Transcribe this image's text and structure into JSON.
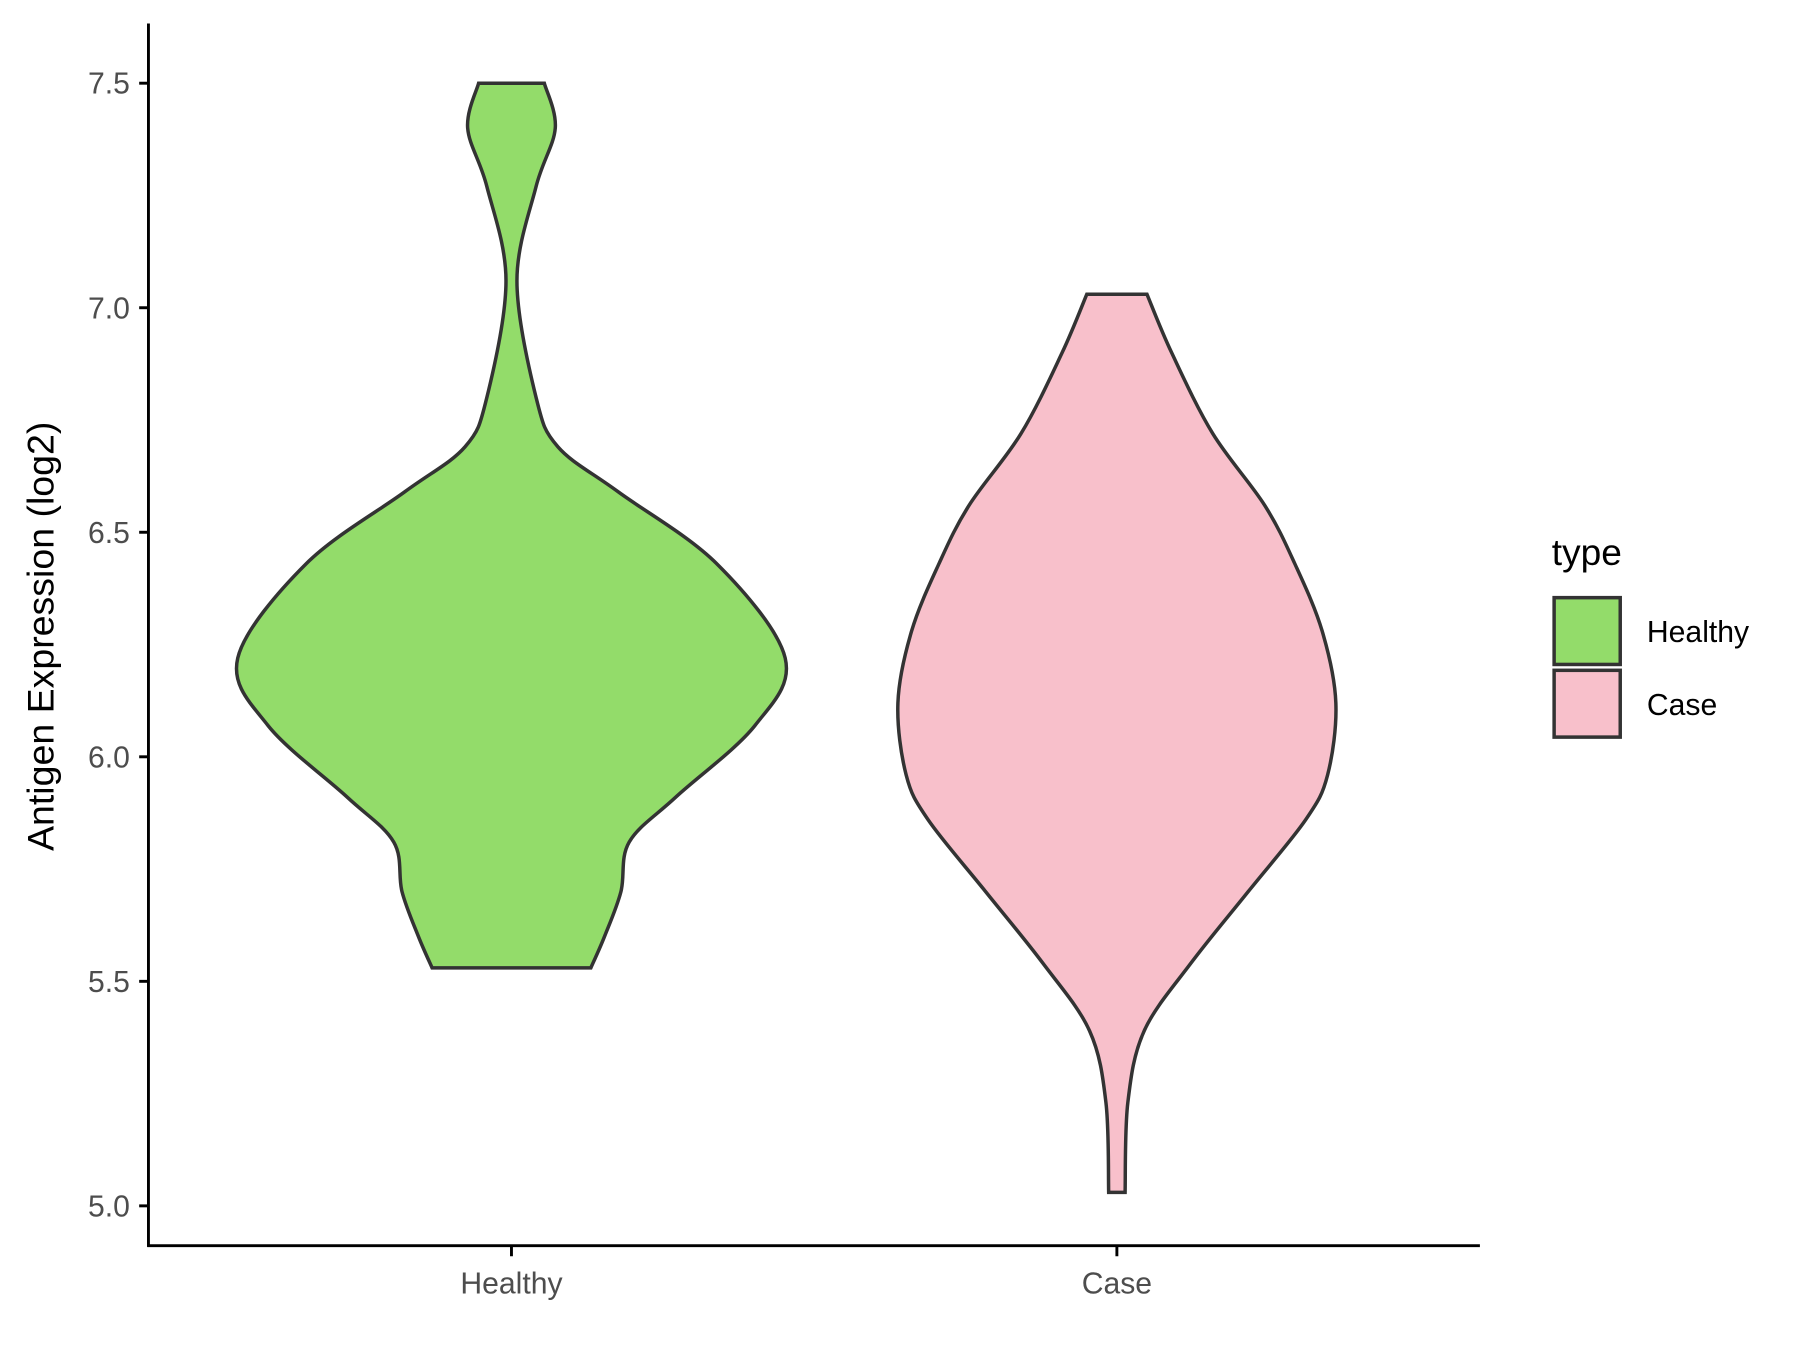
{
  "chart_data": {
    "type": "violin",
    "title": "",
    "xlabel": "",
    "ylabel": "Antigen Expression (log2)",
    "categories": [
      "Healthy",
      "Case"
    ],
    "ylim": [
      4.92,
      7.63
    ],
    "yticks": [
      5.0,
      5.5,
      6.0,
      6.5,
      7.0,
      7.5
    ],
    "ytick_labels": [
      "5.0",
      "5.5",
      "6.0",
      "6.5",
      "7.0",
      "7.5"
    ],
    "grid": false,
    "legend": {
      "title": "type",
      "placement": "right",
      "entries": [
        "Healthy",
        "Case"
      ]
    },
    "colors": {
      "Healthy": "#93DC6A",
      "Case": "#F8C0CB",
      "outline": "#333333"
    },
    "series": [
      {
        "name": "Healthy",
        "profile_y": [
          7.5,
          7.4,
          7.27,
          7.06,
          6.8,
          6.69,
          6.59,
          6.43,
          6.22,
          6.07,
          5.91,
          5.81,
          5.7,
          5.6,
          5.53
        ],
        "relative_width": [
          0.12,
          0.16,
          0.09,
          0.02,
          0.09,
          0.17,
          0.39,
          0.75,
          1.0,
          0.89,
          0.6,
          0.43,
          0.4,
          0.34,
          0.29
        ]
      },
      {
        "name": "Case",
        "profile_y": [
          7.03,
          6.9,
          6.72,
          6.56,
          6.43,
          6.28,
          6.12,
          5.96,
          5.86,
          5.7,
          5.54,
          5.39,
          5.23,
          5.03
        ],
        "relative_width": [
          0.11,
          0.2,
          0.35,
          0.54,
          0.65,
          0.75,
          0.8,
          0.77,
          0.69,
          0.48,
          0.27,
          0.1,
          0.04,
          0.03
        ]
      }
    ]
  }
}
